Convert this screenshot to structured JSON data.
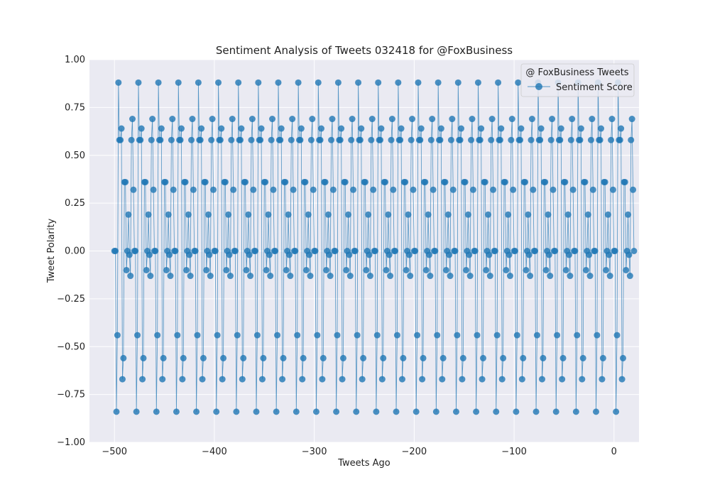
{
  "chart_data": {
    "type": "line",
    "title": "Sentiment Analysis of Tweets 032418 for @FoxBusiness",
    "xlabel": "Tweets Ago",
    "ylabel": "Tweet Polarity",
    "xlim": [
      -525,
      25
    ],
    "ylim": [
      -1.0,
      1.0
    ],
    "x_ticks": [
      -500,
      -400,
      -300,
      -200,
      -100,
      0
    ],
    "x_tick_labels": [
      "−500",
      "−400",
      "−300",
      "−200",
      "−100",
      "0"
    ],
    "y_ticks": [
      -1.0,
      -0.75,
      -0.5,
      -0.25,
      0.0,
      0.25,
      0.5,
      0.75,
      1.0
    ],
    "y_tick_labels": [
      "−1.00",
      "−0.75",
      "−0.50",
      "−0.25",
      "0.00",
      "0.25",
      "0.50",
      "0.75",
      "1.00"
    ],
    "grid": true,
    "legend": {
      "title": "@ FoxBusiness Tweets",
      "placement": "top-right",
      "entries": [
        "Sentiment Score"
      ]
    },
    "x_start": -500,
    "x_step": 1,
    "pattern_period": 20,
    "series": [
      {
        "name": "Sentiment Score",
        "color": "#1f77b4",
        "values": [
          0.0,
          0.0,
          -0.84,
          -0.44,
          0.88,
          0.58,
          0.58,
          0.64,
          -0.67,
          -0.56,
          0.36,
          0.36,
          -0.1,
          0.0,
          0.19,
          -0.02,
          -0.13,
          0.58,
          0.69,
          0.32,
          0.0,
          0.0,
          -0.84,
          -0.44,
          0.88,
          0.58,
          0.58,
          0.64,
          -0.67,
          -0.56,
          0.36,
          0.36,
          -0.1,
          0.0,
          0.19,
          -0.02,
          -0.13,
          0.58,
          0.69,
          0.32,
          0.0,
          0.0,
          -0.84,
          -0.44,
          0.88,
          0.58,
          0.58,
          0.64,
          -0.67,
          -0.56,
          0.36,
          0.36,
          -0.1,
          0.0,
          0.19,
          -0.02,
          -0.13,
          0.58,
          0.69,
          0.32,
          0.0,
          0.0,
          -0.84,
          -0.44,
          0.88,
          0.58,
          0.58,
          0.64,
          -0.67,
          -0.56,
          0.36,
          0.36,
          -0.1,
          0.0,
          0.19,
          -0.02,
          -0.13,
          0.58,
          0.69,
          0.32,
          0.0,
          0.0,
          -0.84,
          -0.44,
          0.88,
          0.58,
          0.58,
          0.64,
          -0.67,
          -0.56,
          0.36,
          0.36,
          -0.1,
          0.0,
          0.19,
          -0.02,
          -0.13,
          0.58,
          0.69,
          0.32,
          0.0,
          0.0,
          -0.84,
          -0.44,
          0.88,
          0.58,
          0.58,
          0.64,
          -0.67,
          -0.56,
          0.36,
          0.36,
          -0.1,
          0.0,
          0.19,
          -0.02,
          -0.13,
          0.58,
          0.69,
          0.32,
          0.0,
          0.0,
          -0.84,
          -0.44,
          0.88,
          0.58,
          0.58,
          0.64,
          -0.67,
          -0.56,
          0.36,
          0.36,
          -0.1,
          0.0,
          0.19,
          -0.02,
          -0.13,
          0.58,
          0.69,
          0.32,
          0.0,
          0.0,
          -0.84,
          -0.44,
          0.88,
          0.58,
          0.58,
          0.64,
          -0.67,
          -0.56,
          0.36,
          0.36,
          -0.1,
          0.0,
          0.19,
          -0.02,
          -0.13,
          0.58,
          0.69,
          0.32,
          0.0,
          0.0,
          -0.84,
          -0.44,
          0.88,
          0.58,
          0.58,
          0.64,
          -0.67,
          -0.56,
          0.36,
          0.36,
          -0.1,
          0.0,
          0.19,
          -0.02,
          -0.13,
          0.58,
          0.69,
          0.32,
          0.0,
          0.0,
          -0.84,
          -0.44,
          0.88,
          0.58,
          0.58,
          0.64,
          -0.67,
          -0.56,
          0.36,
          0.36,
          -0.1,
          0.0,
          0.19,
          -0.02,
          -0.13,
          0.58,
          0.69,
          0.32,
          0.0,
          0.0,
          -0.84,
          -0.44,
          0.88,
          0.58,
          0.58,
          0.64,
          -0.67,
          -0.56,
          0.36,
          0.36,
          -0.1,
          0.0,
          0.19,
          -0.02,
          -0.13,
          0.58,
          0.69,
          0.32,
          0.0,
          0.0,
          -0.84,
          -0.44,
          0.88,
          0.58,
          0.58,
          0.64,
          -0.67,
          -0.56,
          0.36,
          0.36,
          -0.1,
          0.0,
          0.19,
          -0.02,
          -0.13,
          0.58,
          0.69,
          0.32,
          0.0,
          0.0,
          -0.84,
          -0.44,
          0.88,
          0.58,
          0.58,
          0.64,
          -0.67,
          -0.56,
          0.36,
          0.36,
          -0.1,
          0.0,
          0.19,
          -0.02,
          -0.13,
          0.58,
          0.69,
          0.32,
          0.0,
          0.0,
          -0.84,
          -0.44,
          0.88,
          0.58,
          0.58,
          0.64,
          -0.67,
          -0.56,
          0.36,
          0.36,
          -0.1,
          0.0,
          0.19,
          -0.02,
          -0.13,
          0.58,
          0.69,
          0.32,
          0.0,
          0.0,
          -0.84,
          -0.44,
          0.88,
          0.58,
          0.58,
          0.64,
          -0.67,
          -0.56,
          0.36,
          0.36,
          -0.1,
          0.0,
          0.19,
          -0.02,
          -0.13,
          0.58,
          0.69,
          0.32,
          0.0,
          0.0,
          -0.84,
          -0.44,
          0.88,
          0.58,
          0.58,
          0.64,
          -0.67,
          -0.56,
          0.36,
          0.36,
          -0.1,
          0.0,
          0.19,
          -0.02,
          -0.13,
          0.58,
          0.69,
          0.32,
          0.0,
          0.0,
          -0.84,
          -0.44,
          0.88,
          0.58,
          0.58,
          0.64,
          -0.67,
          -0.56,
          0.36,
          0.36,
          -0.1,
          0.0,
          0.19,
          -0.02,
          -0.13,
          0.58,
          0.69,
          0.32,
          0.0,
          0.0,
          -0.84,
          -0.44,
          0.88,
          0.58,
          0.58,
          0.64,
          -0.67,
          -0.56,
          0.36,
          0.36,
          -0.1,
          0.0,
          0.19,
          -0.02,
          -0.13,
          0.58,
          0.69,
          0.32,
          0.0,
          0.0,
          -0.84,
          -0.44,
          0.88,
          0.58,
          0.58,
          0.64,
          -0.67,
          -0.56,
          0.36,
          0.36,
          -0.1,
          0.0,
          0.19,
          -0.02,
          -0.13,
          0.58,
          0.69,
          0.32,
          0.0,
          0.0,
          -0.84,
          -0.44,
          0.88,
          0.58,
          0.58,
          0.64,
          -0.67,
          -0.56,
          0.36,
          0.36,
          -0.1,
          0.0,
          0.19,
          -0.02,
          -0.13,
          0.58,
          0.69,
          0.32,
          0.0,
          0.0,
          -0.84,
          -0.44,
          0.88,
          0.58,
          0.58,
          0.64,
          -0.67,
          -0.56,
          0.36,
          0.36,
          -0.1,
          0.0,
          0.19,
          -0.02,
          -0.13,
          0.58,
          0.69,
          0.32,
          0.0,
          0.0,
          -0.84,
          -0.44,
          0.88,
          0.58,
          0.58,
          0.64,
          -0.67,
          -0.56,
          0.36,
          0.36,
          -0.1,
          0.0,
          0.19,
          -0.02,
          -0.13,
          0.58,
          0.69,
          0.32,
          0.0,
          0.0,
          -0.84,
          -0.44,
          0.88,
          0.58,
          0.58,
          0.64,
          -0.67,
          -0.56,
          0.36,
          0.36,
          -0.1,
          0.0,
          0.19,
          -0.02,
          -0.13,
          0.58,
          0.69,
          0.32,
          0.0,
          0.0,
          -0.84,
          -0.44,
          0.88,
          0.58,
          0.58,
          0.64,
          -0.67,
          -0.56,
          0.36,
          0.36,
          -0.1,
          0.0,
          0.19,
          -0.02,
          -0.13,
          0.58,
          0.69,
          0.32,
          0.0,
          0.0,
          -0.84,
          -0.44,
          0.88,
          0.58,
          0.58,
          0.64,
          -0.67,
          -0.56,
          0.36,
          0.36,
          -0.1,
          0.0,
          0.19,
          -0.02,
          -0.13,
          0.58,
          0.69,
          0.32,
          0.0,
          0.0,
          -0.84,
          -0.44,
          0.88,
          0.58,
          0.58,
          0.64,
          -0.67,
          -0.56,
          0.36,
          0.36,
          -0.1,
          0.0,
          0.19,
          -0.02,
          -0.13,
          0.58,
          0.69,
          0.32,
          0.0
        ]
      }
    ]
  }
}
